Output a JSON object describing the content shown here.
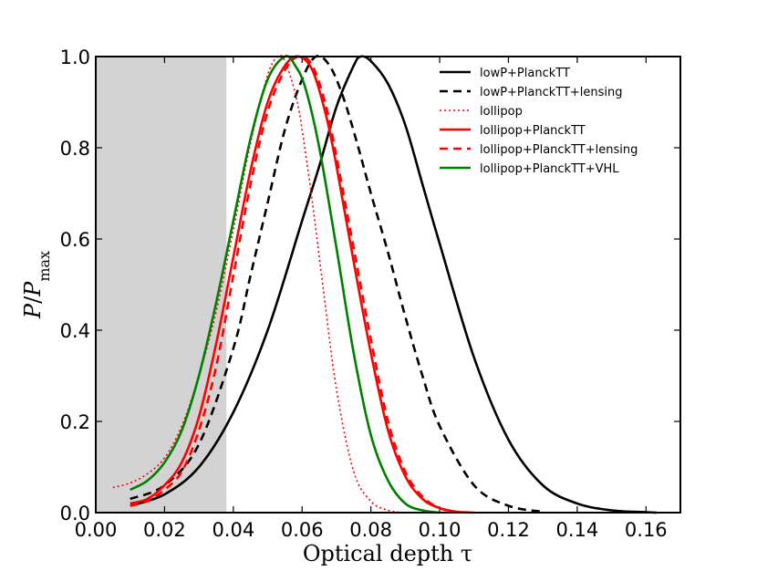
{
  "chart_data": {
    "type": "line",
    "title": "",
    "xlabel": "Optical depth τ",
    "ylabel": "P/Pmax",
    "ylabel_parts": {
      "p1": "P",
      "slash": "/",
      "p2": "P",
      "sub": "max"
    },
    "xlim": [
      0.0,
      0.17
    ],
    "ylim": [
      0.0,
      1.0
    ],
    "xticks": [
      0.0,
      0.02,
      0.04,
      0.06,
      0.08,
      0.1,
      0.12,
      0.14,
      0.16
    ],
    "xtick_labels": [
      "0.00",
      "0.02",
      "0.04",
      "0.06",
      "0.08",
      "0.10",
      "0.12",
      "0.14",
      "0.16"
    ],
    "yticks": [
      0.0,
      0.2,
      0.4,
      0.6,
      0.8,
      1.0
    ],
    "ytick_labels": [
      "0.0",
      "0.2",
      "0.4",
      "0.6",
      "0.8",
      "1.0"
    ],
    "shaded_region": {
      "x_from": 0.0,
      "x_to": 0.038,
      "color": "#d3d3d3"
    },
    "legend_position": "top-right",
    "series": [
      {
        "name": "lowP+PlanckTT",
        "color": "#000000",
        "style": "solid",
        "x": [
          0.01,
          0.02,
          0.03,
          0.04,
          0.05,
          0.06,
          0.065,
          0.07,
          0.075,
          0.077,
          0.08,
          0.085,
          0.09,
          0.095,
          0.1,
          0.11,
          0.12,
          0.13,
          0.14,
          0.15,
          0.16,
          0.163
        ],
        "y": [
          0.015,
          0.04,
          0.1,
          0.22,
          0.4,
          0.64,
          0.76,
          0.89,
          0.98,
          1.0,
          0.99,
          0.94,
          0.85,
          0.72,
          0.59,
          0.34,
          0.16,
          0.06,
          0.02,
          0.005,
          0.001,
          0.0
        ]
      },
      {
        "name": "lowP+PlanckTT+lensing",
        "color": "#000000",
        "style": "dashed",
        "x": [
          0.01,
          0.02,
          0.03,
          0.04,
          0.045,
          0.05,
          0.055,
          0.06,
          0.064,
          0.068,
          0.072,
          0.076,
          0.08,
          0.085,
          0.09,
          0.095,
          0.1,
          0.11,
          0.12,
          0.13
        ],
        "y": [
          0.03,
          0.06,
          0.15,
          0.36,
          0.52,
          0.68,
          0.84,
          0.95,
          1.0,
          0.98,
          0.91,
          0.81,
          0.7,
          0.57,
          0.43,
          0.3,
          0.19,
          0.06,
          0.015,
          0.002
        ]
      },
      {
        "name": "lollipop",
        "color": "#ff0000",
        "style": "dotted",
        "x": [
          0.005,
          0.01,
          0.015,
          0.02,
          0.025,
          0.03,
          0.035,
          0.04,
          0.045,
          0.05,
          0.053,
          0.055,
          0.058,
          0.06,
          0.063,
          0.066,
          0.07,
          0.075,
          0.08,
          0.085,
          0.09
        ],
        "y": [
          0.055,
          0.065,
          0.085,
          0.12,
          0.19,
          0.3,
          0.44,
          0.62,
          0.81,
          0.96,
          1.0,
          0.99,
          0.92,
          0.84,
          0.68,
          0.5,
          0.27,
          0.09,
          0.025,
          0.005,
          0.0
        ]
      },
      {
        "name": "lollipop+PlanckTT",
        "color": "#ff0000",
        "style": "solid",
        "x": [
          0.01,
          0.015,
          0.02,
          0.025,
          0.03,
          0.035,
          0.04,
          0.045,
          0.05,
          0.055,
          0.059,
          0.063,
          0.067,
          0.07,
          0.075,
          0.08,
          0.085,
          0.09,
          0.095,
          0.1,
          0.105,
          0.11
        ],
        "y": [
          0.02,
          0.03,
          0.06,
          0.11,
          0.21,
          0.37,
          0.56,
          0.75,
          0.9,
          0.98,
          1.0,
          0.97,
          0.87,
          0.76,
          0.55,
          0.35,
          0.18,
          0.08,
          0.03,
          0.01,
          0.002,
          0.0
        ]
      },
      {
        "name": "lollipop+PlanckTT+lensing",
        "color": "#ff0000",
        "style": "dashed",
        "x": [
          0.01,
          0.015,
          0.02,
          0.025,
          0.03,
          0.035,
          0.04,
          0.045,
          0.05,
          0.055,
          0.059,
          0.063,
          0.067,
          0.07,
          0.075,
          0.08,
          0.085,
          0.09,
          0.095,
          0.1,
          0.105
        ],
        "y": [
          0.015,
          0.025,
          0.05,
          0.09,
          0.18,
          0.32,
          0.52,
          0.72,
          0.88,
          0.97,
          1.0,
          0.98,
          0.89,
          0.78,
          0.58,
          0.38,
          0.2,
          0.09,
          0.035,
          0.01,
          0.0
        ]
      },
      {
        "name": "lollipop+PlanckTT+VHL",
        "color": "#008000",
        "style": "solid",
        "x": [
          0.01,
          0.015,
          0.02,
          0.025,
          0.03,
          0.035,
          0.04,
          0.045,
          0.05,
          0.055,
          0.058,
          0.061,
          0.065,
          0.07,
          0.075,
          0.08,
          0.085,
          0.09,
          0.095,
          0.1
        ],
        "y": [
          0.05,
          0.07,
          0.11,
          0.18,
          0.3,
          0.46,
          0.64,
          0.82,
          0.95,
          1.0,
          0.98,
          0.93,
          0.8,
          0.58,
          0.35,
          0.17,
          0.07,
          0.02,
          0.005,
          0.0
        ]
      }
    ]
  }
}
